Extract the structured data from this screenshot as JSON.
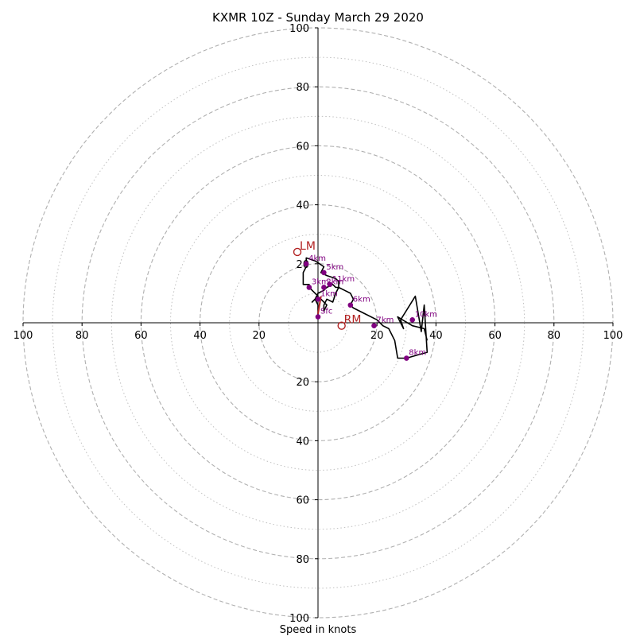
{
  "chart_data": {
    "type": "hodograph",
    "title": "KXMR 10Z - Sunday March 29 2020",
    "xlabel": "Speed in knots",
    "range": [
      -100,
      100
    ],
    "ring_major": [
      20,
      40,
      60,
      80,
      100
    ],
    "ring_minor": [
      10,
      30,
      50,
      70,
      90
    ],
    "x_ticks": [
      "100",
      "80",
      "60",
      "40",
      "20",
      "20",
      "40",
      "60",
      "80",
      "100"
    ],
    "x_tick_values": [
      -100,
      -80,
      -60,
      -40,
      -20,
      20,
      40,
      60,
      80,
      100
    ],
    "y_ticks": [
      "100",
      "80",
      "60",
      "40",
      "20",
      "20",
      "40",
      "60",
      "80",
      "100"
    ],
    "y_tick_values": [
      100,
      80,
      60,
      40,
      20,
      -20,
      -40,
      -60,
      -80,
      -100
    ],
    "grid": true,
    "trace": [
      [
        0,
        2
      ],
      [
        0,
        6
      ],
      [
        -1,
        8
      ],
      [
        0,
        10
      ],
      [
        2,
        11
      ],
      [
        3,
        12
      ],
      [
        5,
        13
      ],
      [
        6,
        12
      ],
      [
        7,
        12
      ],
      [
        6,
        10
      ],
      [
        5,
        7
      ],
      [
        3,
        8
      ],
      [
        2,
        6
      ],
      [
        2,
        4
      ],
      [
        3,
        6
      ],
      [
        1,
        8
      ],
      [
        -1,
        8
      ],
      [
        -2,
        7
      ],
      [
        0,
        9
      ],
      [
        -2,
        11
      ],
      [
        -3,
        12
      ],
      [
        -3,
        13
      ],
      [
        -5,
        13
      ],
      [
        -5,
        15
      ],
      [
        -5,
        17
      ],
      [
        -4,
        19
      ],
      [
        -4,
        20
      ],
      [
        -4,
        22
      ],
      [
        -1,
        21
      ],
      [
        2,
        19
      ],
      [
        1,
        17
      ],
      [
        3,
        16
      ],
      [
        6,
        15
      ],
      [
        7,
        14
      ],
      [
        7,
        12
      ],
      [
        9,
        11
      ],
      [
        11,
        10
      ],
      [
        12,
        8
      ],
      [
        11,
        6
      ],
      [
        12,
        5
      ],
      [
        16,
        3
      ],
      [
        20,
        1
      ],
      [
        22,
        -1
      ],
      [
        24,
        -2
      ],
      [
        26,
        -6
      ],
      [
        27,
        -12
      ],
      [
        30,
        -12
      ],
      [
        37,
        -10
      ],
      [
        36,
        6
      ],
      [
        35,
        -3
      ],
      [
        33,
        9
      ],
      [
        28,
        1
      ],
      [
        29,
        -2
      ],
      [
        27,
        2
      ],
      [
        32,
        -1
      ],
      [
        36,
        -2
      ],
      [
        37,
        -6
      ]
    ],
    "heights": [
      {
        "label": "Sfc",
        "u": 0,
        "v": 2
      },
      {
        "label": "1km",
        "u": 0,
        "v": 8
      },
      {
        "label": "2km",
        "u": 2,
        "v": 12
      },
      {
        "label": "3km",
        "u": -3,
        "v": 12
      },
      {
        "label": "4km",
        "u": -4,
        "v": 20
      },
      {
        "label": "5km",
        "u": 2,
        "v": 17
      },
      {
        "label": "6km",
        "u": 11,
        "v": 6
      },
      {
        "label": "7km",
        "u": 19,
        "v": -1
      },
      {
        "label": "8km",
        "u": 30,
        "v": -12
      },
      {
        "label": "10km",
        "u": 32,
        "v": 1
      },
      {
        "label": "11km",
        "u": 4,
        "v": 13
      }
    ],
    "storm_motion": [
      {
        "label": "LM",
        "u": -7,
        "v": 24
      },
      {
        "label": "RM",
        "u": 8,
        "v": -1
      }
    ],
    "mean_wind_segment": [
      [
        0,
        3
      ],
      [
        1,
        9
      ]
    ]
  },
  "colors": {
    "trace": "#000000",
    "heights": "#800080",
    "storm_motion": "#b22222",
    "grid": "#b0b0b0",
    "axes": "#000000"
  }
}
